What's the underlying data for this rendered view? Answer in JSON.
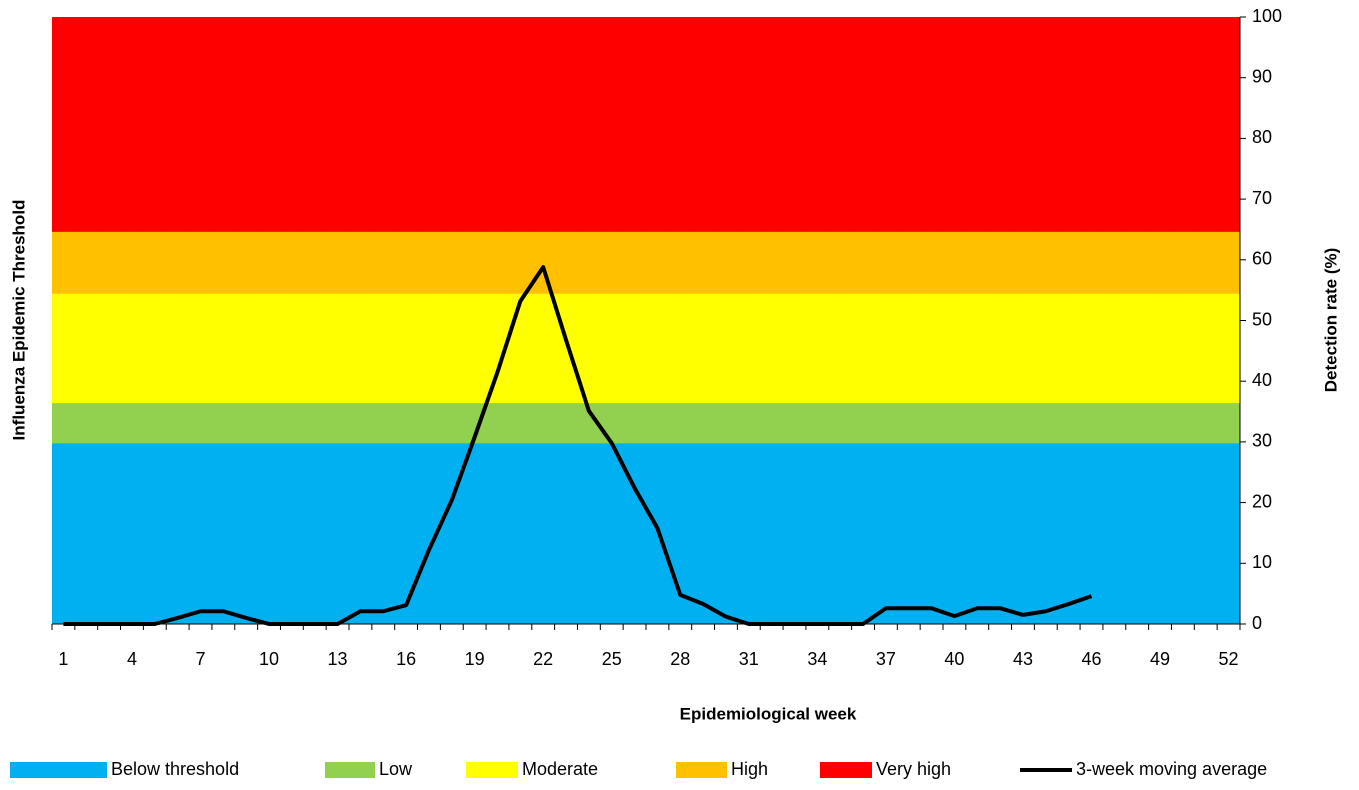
{
  "chart_data": {
    "type": "combo",
    "x_label": "Epidemiological week",
    "y_label": "Influenza Epidemic Threshold",
    "y2_label": "Detection rate (%)",
    "categories": [
      "1",
      null,
      null,
      "4",
      null,
      null,
      "7",
      null,
      null,
      "10",
      null,
      null,
      "13",
      null,
      null,
      "16",
      null,
      null,
      "19",
      null,
      null,
      "22",
      null,
      null,
      "25",
      null,
      null,
      "28",
      null,
      null,
      "31",
      null,
      null,
      "34",
      null,
      null,
      "37",
      null,
      null,
      "40",
      null,
      null,
      "43",
      null,
      null,
      "46",
      null,
      null,
      "49",
      null,
      null,
      "52"
    ],
    "y2lim": [
      0,
      100
    ],
    "y2ticks": [
      0,
      10,
      20,
      30,
      40,
      50,
      60,
      70,
      80,
      90,
      100
    ],
    "series": [
      {
        "name": "Below threshold",
        "type": "area",
        "axis": "y2",
        "color": "#00b0f0",
        "values": [
          29.8,
          29.8,
          29.8,
          29.8,
          29.8,
          29.8,
          29.8,
          29.8,
          29.8,
          29.8,
          29.8,
          29.8,
          29.8,
          29.8,
          29.8,
          29.8,
          29.8,
          29.8,
          29.8,
          29.8,
          29.8,
          29.8,
          29.8,
          29.8,
          29.8,
          29.8,
          29.8,
          29.8,
          29.8,
          29.8,
          29.8,
          29.8,
          29.8,
          29.8,
          29.8,
          29.8,
          29.8,
          29.8,
          29.8,
          29.8,
          29.8,
          29.8,
          29.8,
          29.8,
          29.8,
          29.8,
          29.8,
          29.8,
          29.8,
          29.8,
          29.8,
          29.8
        ]
      },
      {
        "name": "Low",
        "type": "area",
        "axis": "y2",
        "color": "#92d050",
        "values": [
          6.6,
          6.6,
          6.6,
          6.6,
          6.6,
          6.6,
          6.6,
          6.6,
          6.6,
          6.6,
          6.6,
          6.6,
          6.6,
          6.6,
          6.6,
          6.6,
          6.6,
          6.6,
          6.6,
          6.6,
          6.6,
          6.6,
          6.6,
          6.6,
          6.6,
          6.6,
          6.6,
          6.6,
          6.6,
          6.6,
          6.6,
          6.6,
          6.6,
          6.6,
          6.6,
          6.6,
          6.6,
          6.6,
          6.6,
          6.6,
          6.6,
          6.6,
          6.6,
          6.6,
          6.6,
          6.6,
          6.6,
          6.6,
          6.6,
          6.6,
          6.6,
          6.6
        ]
      },
      {
        "name": "Moderate",
        "type": "area",
        "axis": "y2",
        "color": "#ffff00",
        "values": [
          18,
          18,
          18,
          18,
          18,
          18,
          18,
          18,
          18,
          18,
          18,
          18,
          18,
          18,
          18,
          18,
          18,
          18,
          18,
          18,
          18,
          18,
          18,
          18,
          18,
          18,
          18,
          18,
          18,
          18,
          18,
          18,
          18,
          18,
          18,
          18,
          18,
          18,
          18,
          18,
          18,
          18,
          18,
          18,
          18,
          18,
          18,
          18,
          18,
          18,
          18,
          18
        ]
      },
      {
        "name": "High",
        "type": "area",
        "axis": "y2",
        "color": "#ffc000",
        "values": [
          10.2,
          10.2,
          10.2,
          10.2,
          10.2,
          10.2,
          10.2,
          10.2,
          10.2,
          10.2,
          10.2,
          10.2,
          10.2,
          10.2,
          10.2,
          10.2,
          10.2,
          10.2,
          10.2,
          10.2,
          10.2,
          10.2,
          10.2,
          10.2,
          10.2,
          10.2,
          10.2,
          10.2,
          10.2,
          10.2,
          10.2,
          10.2,
          10.2,
          10.2,
          10.2,
          10.2,
          10.2,
          10.2,
          10.2,
          10.2,
          10.2,
          10.2,
          10.2,
          10.2,
          10.2,
          10.2,
          10.2,
          10.2,
          10.2,
          10.2,
          10.2,
          10.2
        ]
      },
      {
        "name": "Very high",
        "type": "area",
        "axis": "y2",
        "color": "#ff0000",
        "values": [
          35.4,
          35.4,
          35.4,
          35.4,
          35.4,
          35.4,
          35.4,
          35.4,
          35.4,
          35.4,
          35.4,
          35.4,
          35.4,
          35.4,
          35.4,
          35.4,
          35.4,
          35.4,
          35.4,
          35.4,
          35.4,
          35.4,
          35.4,
          35.4,
          35.4,
          35.4,
          35.4,
          35.4,
          35.4,
          35.4,
          35.4,
          35.4,
          35.4,
          35.4,
          35.4,
          35.4,
          35.4,
          35.4,
          35.4,
          35.4,
          35.4,
          35.4,
          35.4,
          35.4,
          35.4,
          35.4,
          35.4,
          35.4,
          35.4,
          35.4,
          35.4,
          35.4
        ]
      },
      {
        "name": "3-week moving average",
        "type": "line",
        "axis": "y2",
        "color": "#000000",
        "values": [
          0,
          0,
          0,
          0,
          0,
          1,
          2.1,
          2.1,
          1,
          0,
          0,
          0,
          0,
          2.1,
          2.1,
          3.1,
          12.2,
          20.4,
          30.8,
          41.5,
          53.2,
          58.8,
          46.8,
          35.1,
          29.8,
          22.4,
          15.8,
          4.8,
          3.3,
          1.2,
          0,
          0,
          0,
          0,
          0,
          0,
          2.6,
          2.6,
          2.6,
          1.3,
          2.6,
          2.6,
          1.5,
          2.1,
          3.3,
          4.6,
          null,
          null,
          null,
          null,
          null,
          null
        ]
      }
    ]
  }
}
